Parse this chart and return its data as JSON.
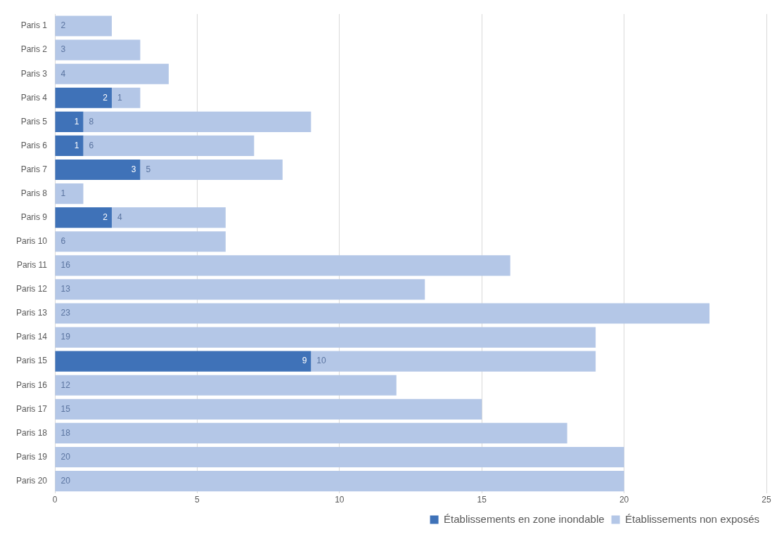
{
  "chart_data": {
    "type": "bar",
    "orientation": "horizontal",
    "stacked": true,
    "categories": [
      "Paris 1",
      "Paris 2",
      "Paris 3",
      "Paris 4",
      "Paris 5",
      "Paris 6",
      "Paris 7",
      "Paris 8",
      "Paris 9",
      "Paris 10",
      "Paris 11",
      "Paris 12",
      "Paris 13",
      "Paris 14",
      "Paris 15",
      "Paris 16",
      "Paris 17",
      "Paris 18",
      "Paris 19",
      "Paris 20"
    ],
    "series": [
      {
        "name": "Établissements en zone inondable",
        "color": "#3f72b8",
        "values": [
          null,
          null,
          null,
          2,
          1,
          1,
          3,
          null,
          2,
          null,
          null,
          null,
          null,
          null,
          9,
          null,
          null,
          null,
          null,
          null
        ],
        "value_labels": [
          null,
          null,
          null,
          "2",
          "1",
          "1",
          "3",
          null,
          "2",
          null,
          null,
          null,
          null,
          null,
          "9",
          null,
          null,
          null,
          null,
          null
        ]
      },
      {
        "name": "Établissements non exposés",
        "color": "#b4c7e7",
        "values": [
          2,
          3,
          4,
          1,
          8,
          6,
          5,
          1,
          4,
          6,
          16,
          13,
          23,
          19,
          10,
          12,
          15,
          18,
          20,
          20
        ],
        "value_labels": [
          "2",
          "3",
          "4",
          "1",
          "8",
          "6",
          "5",
          "1",
          "4",
          "6",
          "16",
          "13",
          "23",
          "19",
          "10",
          "12",
          "15",
          "18",
          "20",
          "20"
        ]
      }
    ],
    "xlim": [
      0,
      25
    ],
    "xticks": [
      0,
      5,
      10,
      15,
      20,
      25
    ],
    "grid": "x",
    "legend": "bottom right"
  }
}
